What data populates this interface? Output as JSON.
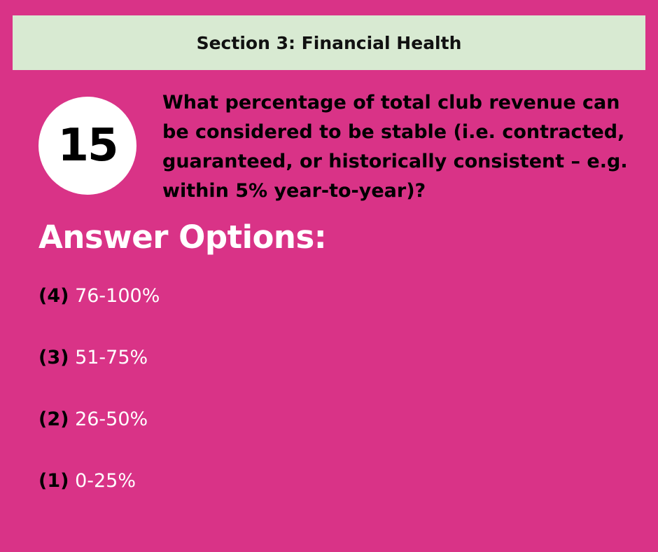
{
  "section": {
    "title": "Section 3: Financial Health"
  },
  "question": {
    "number": "15",
    "text": "What percentage of total club revenue can be considered to be stable (i.e. contracted, guaranteed, or historically consistent – e.g. within 5% year-to-year)?"
  },
  "answers": {
    "heading": "Answer Options:",
    "options": [
      {
        "code": "(4)",
        "range": "76-100%"
      },
      {
        "code": "(3)",
        "range": "51-75%"
      },
      {
        "code": "(2)",
        "range": "26-50%"
      },
      {
        "code": "(1)",
        "range": "0-25%"
      }
    ]
  },
  "colors": {
    "background": "#d93387",
    "banner": "#d8ead2",
    "circle": "#ffffff"
  }
}
